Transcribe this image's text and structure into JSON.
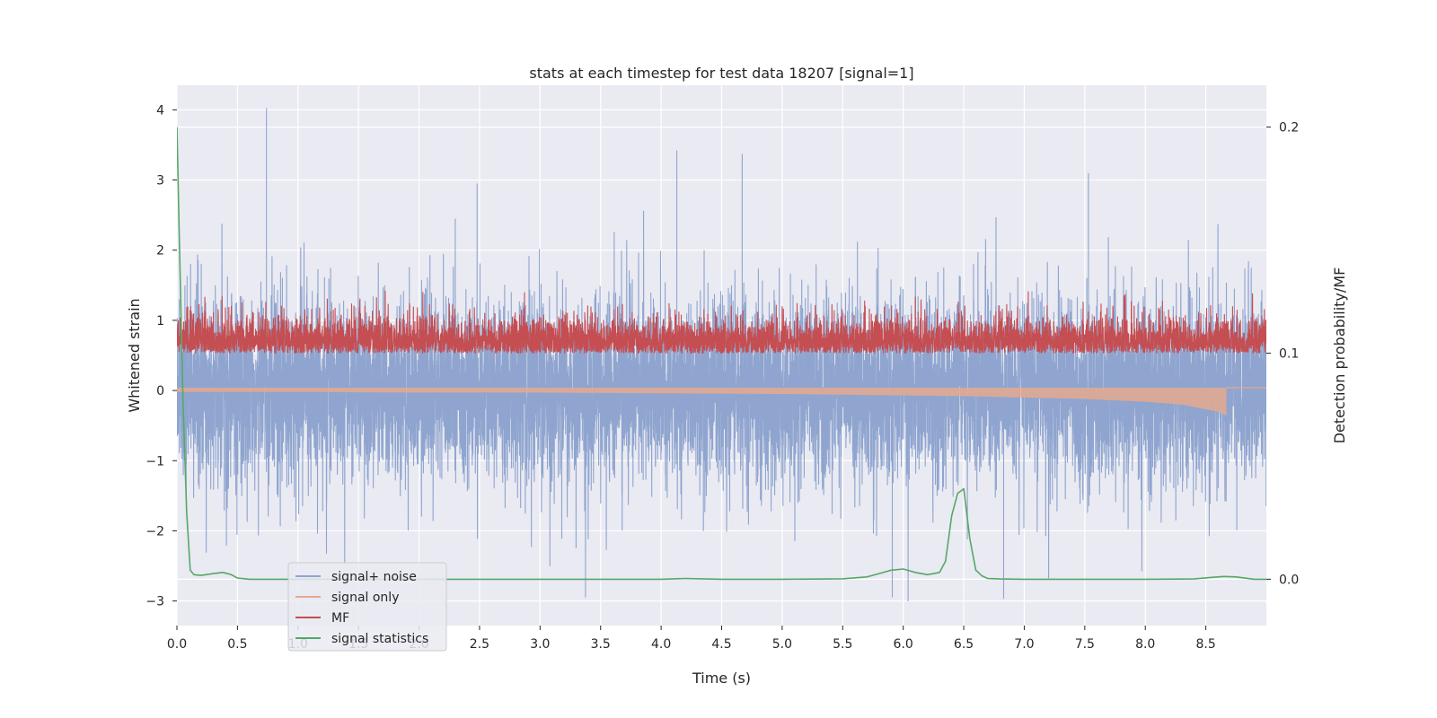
{
  "chart_data": {
    "type": "line",
    "title": "stats at each timestep for test data 18207 [signal=1]",
    "xlabel": "Time (s)",
    "ylabel": "Whitened strain",
    "y2label": "Detection probability/MF",
    "xlim": [
      0,
      9.0
    ],
    "ylim": [
      -3.35,
      4.35
    ],
    "y2lim": [
      -0.0205,
      0.2185
    ],
    "x_ticks": [
      0.0,
      0.5,
      1.0,
      1.5,
      2.0,
      2.5,
      3.0,
      3.5,
      4.0,
      4.5,
      5.0,
      5.5,
      6.0,
      6.5,
      7.0,
      7.5,
      8.0,
      8.5
    ],
    "x_tick_labels": [
      "0.0",
      "0.5",
      "1.0",
      "1.5",
      "2.0",
      "2.5",
      "3.0",
      "3.5",
      "4.0",
      "4.5",
      "5.0",
      "5.5",
      "6.0",
      "6.5",
      "7.0",
      "7.5",
      "8.0",
      "8.5"
    ],
    "y_ticks": [
      -3,
      -2,
      -1,
      0,
      1,
      2,
      3,
      4
    ],
    "y_tick_labels": [
      "−3",
      "−2",
      "−1",
      "0",
      "1",
      "2",
      "3",
      "4"
    ],
    "y2_ticks": [
      0.0,
      0.1,
      0.2
    ],
    "y2_tick_labels": [
      "0.0",
      "0.1",
      "0.2"
    ],
    "grid": true,
    "legend_position": "lower-left",
    "series": [
      {
        "name": "signal+ noise",
        "axis": "left",
        "color": "#8fa5cf",
        "sample_rate": 2048,
        "duration": 9.0,
        "amplitude_envelope": [
          -3.0,
          4.0
        ],
        "notable_peaks": [
          [
            0.74,
            4.02
          ],
          [
            4.13,
            3.42
          ],
          [
            4.67,
            3.37
          ],
          [
            2.48,
            2.95
          ],
          [
            7.53,
            3.1
          ],
          [
            5.91,
            -2.95
          ],
          [
            6.83,
            -2.97
          ]
        ]
      },
      {
        "name": "signal only",
        "axis": "left",
        "color": "#e5a98f",
        "x": [
          0.0,
          1.0,
          2.0,
          3.0,
          4.0,
          5.0,
          6.0,
          6.5,
          7.0,
          7.5,
          8.0,
          8.3,
          8.6,
          8.67
        ],
        "envelope": [
          0.02,
          0.02,
          0.03,
          0.03,
          0.04,
          0.05,
          0.07,
          0.08,
          0.1,
          0.12,
          0.16,
          0.2,
          0.3,
          0.36
        ]
      },
      {
        "name": "MF",
        "axis": "right",
        "color": "#c44e52",
        "baseline": 0.1,
        "range": [
          0.098,
          0.13
        ]
      },
      {
        "name": "signal statistics",
        "axis": "right",
        "color": "#55a868",
        "x": [
          0.0,
          0.02,
          0.05,
          0.08,
          0.11,
          0.14,
          0.2,
          0.3,
          0.38,
          0.45,
          0.5,
          0.6,
          0.8,
          1.0,
          2.0,
          3.0,
          4.0,
          4.2,
          4.5,
          5.0,
          5.5,
          5.7,
          5.8,
          5.9,
          6.0,
          6.1,
          6.2,
          6.3,
          6.35,
          6.4,
          6.45,
          6.5,
          6.55,
          6.6,
          6.65,
          6.7,
          6.8,
          7.0,
          8.0,
          8.4,
          8.55,
          8.65,
          8.75,
          8.9,
          9.0
        ],
        "y": [
          0.2,
          0.15,
          0.08,
          0.03,
          0.004,
          0.002,
          0.0017,
          0.0025,
          0.003,
          0.002,
          0.0005,
          0.0,
          0.0,
          0.0,
          0.0,
          0.0,
          0.0,
          0.0003,
          0.0,
          0.0,
          0.0002,
          0.001,
          0.0025,
          0.004,
          0.0045,
          0.003,
          0.002,
          0.003,
          0.008,
          0.028,
          0.038,
          0.04,
          0.018,
          0.004,
          0.0015,
          0.0003,
          0.0001,
          0.0,
          0.0,
          0.0001,
          0.0008,
          0.0012,
          0.001,
          0.0,
          0.0
        ]
      }
    ]
  }
}
